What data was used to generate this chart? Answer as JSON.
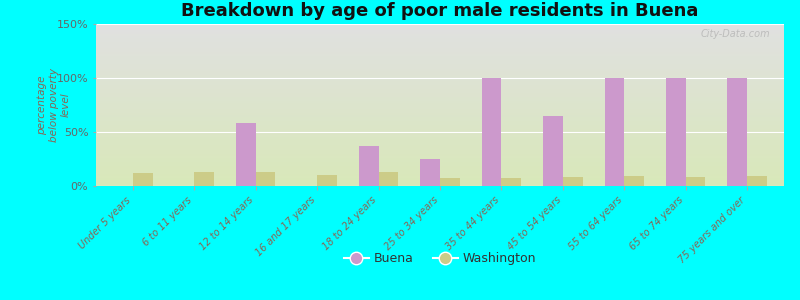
{
  "title": "Breakdown by age of poor male residents in Buena",
  "ylabel": "percentage\nbelow poverty\nlevel",
  "categories": [
    "Under 5 years",
    "6 to 11 years",
    "12 to 14 years",
    "16 and 17 years",
    "18 to 24 years",
    "25 to 34 years",
    "35 to 44 years",
    "45 to 54 years",
    "55 to 64 years",
    "65 to 74 years",
    "75 years and over"
  ],
  "buena_values": [
    0,
    0,
    58,
    0,
    37,
    25,
    100,
    65,
    100,
    100,
    100
  ],
  "washington_values": [
    12,
    13,
    13,
    10,
    13,
    7,
    7,
    8,
    9,
    8,
    9
  ],
  "buena_color": "#cc99cc",
  "washington_color": "#cccc88",
  "background_color": "#00ffff",
  "plot_bg_top": "#e0e0e0",
  "plot_bg_bottom": "#d8e8b8",
  "ylim": [
    0,
    150
  ],
  "yticks": [
    0,
    50,
    100,
    150
  ],
  "ytick_labels": [
    "0%",
    "50%",
    "100%",
    "150%"
  ],
  "bar_width": 0.32,
  "title_fontsize": 13,
  "axis_label_color": "#886655",
  "legend_labels": [
    "Buena",
    "Washington"
  ],
  "watermark": "City-Data.com"
}
